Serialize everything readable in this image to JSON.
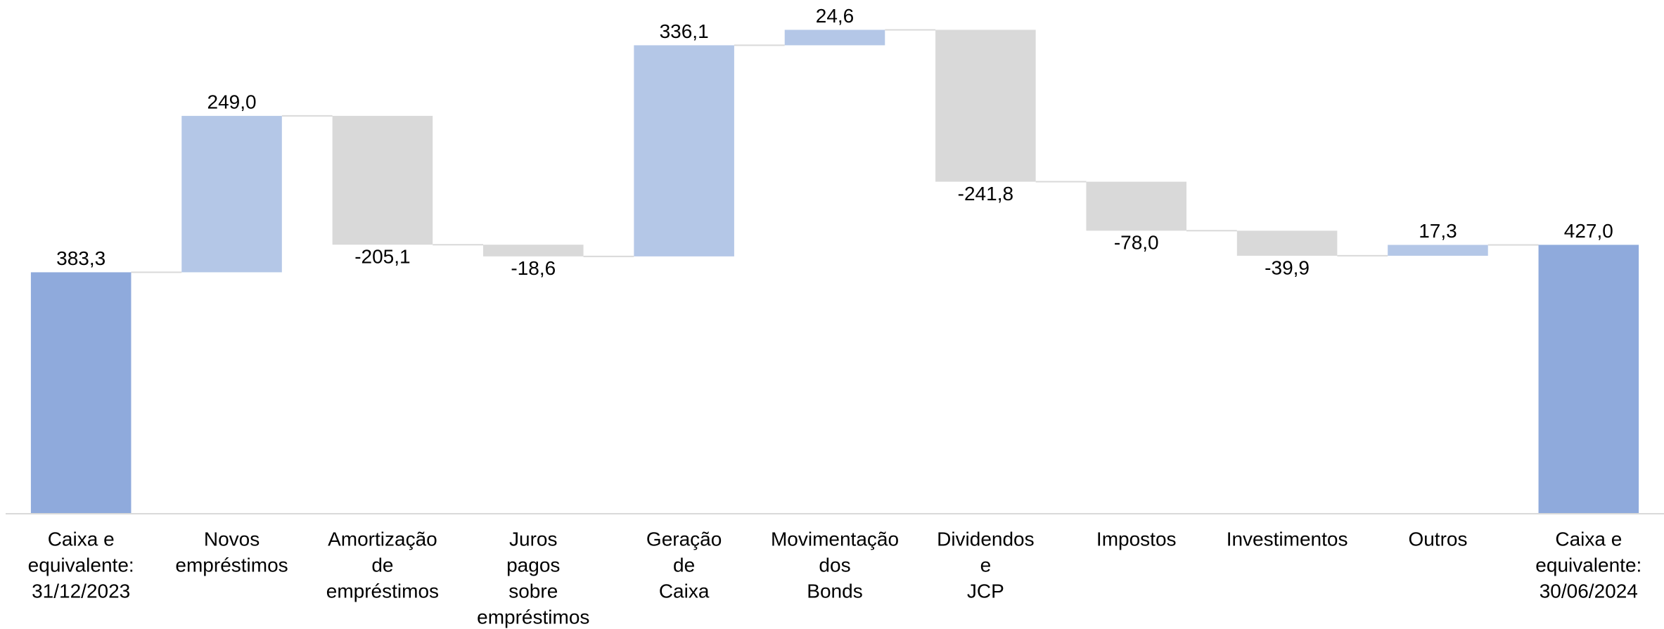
{
  "chart_data": {
    "type": "waterfall",
    "categories": [
      [
        "Caixa e",
        "equivalente:",
        "31/12/2023"
      ],
      [
        "Novos",
        "empréstimos"
      ],
      [
        "Amortização",
        "de",
        "empréstimos"
      ],
      [
        "Juros",
        "pagos",
        "sobre",
        "empréstimos"
      ],
      [
        "Geração",
        "de",
        "Caixa"
      ],
      [
        "Movimentação",
        "dos",
        "Bonds"
      ],
      [
        "Dividendos",
        "e",
        "JCP"
      ],
      [
        "Impostos"
      ],
      [
        "Investimentos"
      ],
      [
        "Outros"
      ],
      [
        "Caixa e",
        "equivalente:",
        "30/06/2024"
      ]
    ],
    "values": [
      383.3,
      249.0,
      -205.1,
      -18.6,
      336.1,
      24.6,
      -241.8,
      -78.0,
      -39.9,
      17.3,
      427.0
    ],
    "value_labels": [
      "383,3",
      "249,0",
      "-205,1",
      "-18,6",
      "336,1",
      "24,6",
      "-241,8",
      "-78,0",
      "-39,9",
      "17,3",
      "427,0"
    ],
    "measure": [
      "total",
      "relative",
      "relative",
      "relative",
      "relative",
      "relative",
      "relative",
      "relative",
      "relative",
      "relative",
      "total"
    ],
    "colors": {
      "total": "#8faadc",
      "increase": "#b4c7e7",
      "decrease": "#d9d9d9"
    },
    "ylim": [
      0,
      800
    ]
  }
}
